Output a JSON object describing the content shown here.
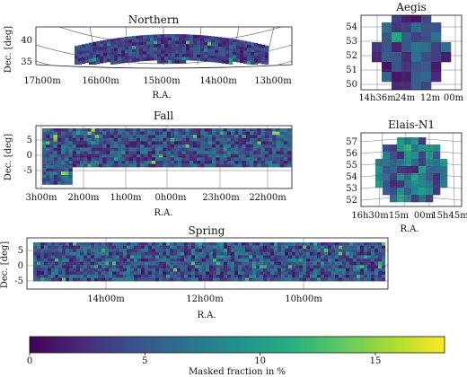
{
  "colormap": {
    "name": "viridis",
    "stops": [
      "#440154",
      "#472c7a",
      "#3b518b",
      "#2c718e",
      "#21908d",
      "#27ad81",
      "#5cc863",
      "#aadc32",
      "#fde725"
    ]
  },
  "chart_data": [
    {
      "id": "northern",
      "type": "heatmap",
      "title": "Northern",
      "xlabel": "R.A.",
      "ylabel": "Dec. [deg]",
      "x_ticks": [
        "17h00m",
        "16h00m",
        "15h00m",
        "14h00m",
        "13h00m"
      ],
      "y_ticks": [
        "35",
        "40"
      ],
      "ylim": [
        32,
        43
      ],
      "grid": true,
      "projection": "curved",
      "typical_masked_fraction_pct": [
        1,
        6
      ],
      "max_masked_fraction_pct": 14
    },
    {
      "id": "aegis",
      "type": "heatmap",
      "title": "Aegis",
      "xlabel": "",
      "ylabel": "",
      "x_ticks": [
        "14h36m",
        "24m",
        "12m",
        "00m"
      ],
      "y_ticks": [
        "50",
        "51",
        "52",
        "53",
        "54"
      ],
      "ylim": [
        50,
        55
      ],
      "grid": true,
      "typical_masked_fraction_pct": [
        1,
        7
      ]
    },
    {
      "id": "fall",
      "type": "heatmap",
      "title": "Fall",
      "xlabel": "R.A.",
      "ylabel": "Dec. [deg]",
      "x_ticks": [
        "3h00m",
        "2h00m",
        "1h00m",
        "0h00m",
        "23h00m",
        "22h00m"
      ],
      "y_ticks": [
        "5",
        "0",
        "-5"
      ],
      "ylim": [
        -10,
        9
      ],
      "grid": true,
      "typical_masked_fraction_pct": [
        1,
        8
      ],
      "max_masked_fraction_pct": 16
    },
    {
      "id": "elais-n1",
      "type": "heatmap",
      "title": "Elais-N1",
      "xlabel": "R.A.",
      "ylabel": "",
      "x_ticks": [
        "16h30m",
        "15m",
        "00m",
        "15h45m"
      ],
      "y_ticks": [
        "52",
        "53",
        "54",
        "55",
        "56",
        "57"
      ],
      "ylim": [
        51.5,
        58
      ],
      "grid": true,
      "typical_masked_fraction_pct": [
        2,
        10
      ]
    },
    {
      "id": "spring",
      "type": "heatmap",
      "title": "Spring",
      "xlabel": "R.A.",
      "ylabel": "Dec. [deg]",
      "x_ticks": [
        "14h00m",
        "12h00m",
        "10h00m"
      ],
      "y_ticks": [
        "5",
        "0",
        "-5"
      ],
      "ylim": [
        -6,
        8
      ],
      "grid": true,
      "typical_masked_fraction_pct": [
        1,
        8
      ],
      "max_masked_fraction_pct": 14
    }
  ],
  "colorbar": {
    "label": "Masked fraction in %",
    "ticks": [
      "0",
      "5",
      "10",
      "15"
    ],
    "tick_values": [
      0,
      5,
      10,
      15
    ],
    "range": [
      0,
      18
    ]
  }
}
